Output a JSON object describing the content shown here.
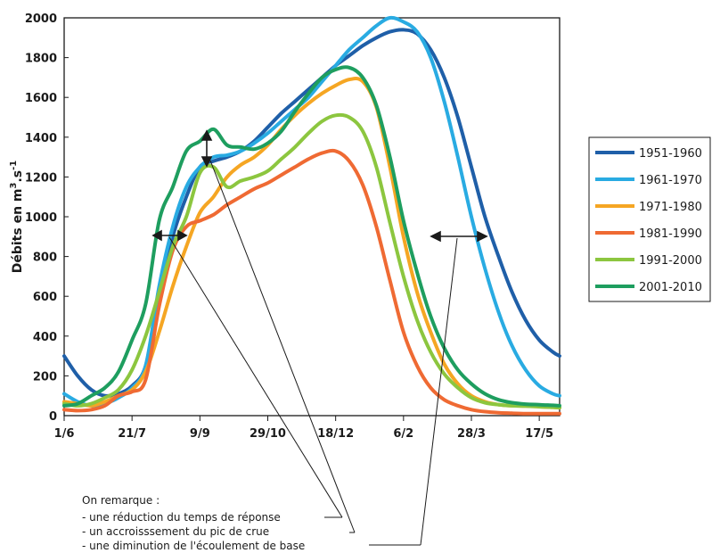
{
  "chart_data": {
    "type": "line",
    "ylabel": "Débits en m³.s⁻¹",
    "ylabel_main": "Débits en m",
    "ylabel_sup1": "3",
    "ylabel_mid": ".s",
    "ylabel_sup2": "-1",
    "ylim": [
      0,
      2000
    ],
    "yticks": [
      0,
      200,
      400,
      600,
      800,
      1000,
      1200,
      1400,
      1600,
      1800,
      2000
    ],
    "xlim": [
      0,
      365
    ],
    "xtick_labels": [
      "1/6",
      "21/7",
      "9/9",
      "29/10",
      "18/12",
      "6/2",
      "28/3",
      "17/5"
    ],
    "xtick_days": [
      0,
      50,
      100,
      150,
      200,
      250,
      300,
      350
    ],
    "grid": false,
    "legend_position": "right",
    "series": [
      {
        "name": "1951-1960",
        "color": "#1f5fa8",
        "x": [
          0,
          10,
          20,
          30,
          40,
          50,
          60,
          70,
          80,
          90,
          100,
          110,
          120,
          130,
          140,
          150,
          160,
          170,
          180,
          190,
          200,
          210,
          220,
          230,
          240,
          250,
          260,
          270,
          280,
          290,
          300,
          310,
          320,
          330,
          340,
          350,
          360,
          365
        ],
        "y": [
          300,
          200,
          130,
          100,
          110,
          150,
          250,
          600,
          900,
          1100,
          1250,
          1280,
          1300,
          1330,
          1380,
          1450,
          1520,
          1580,
          1640,
          1700,
          1760,
          1810,
          1860,
          1900,
          1930,
          1940,
          1920,
          1840,
          1700,
          1500,
          1250,
          1000,
          800,
          620,
          480,
          380,
          320,
          300
        ]
      },
      {
        "name": "1961-1970",
        "color": "#29abe2",
        "x": [
          0,
          10,
          20,
          30,
          40,
          50,
          60,
          70,
          80,
          90,
          100,
          110,
          120,
          130,
          140,
          150,
          160,
          170,
          180,
          190,
          200,
          210,
          220,
          230,
          240,
          250,
          260,
          270,
          280,
          290,
          300,
          310,
          320,
          330,
          340,
          350,
          360,
          365
        ],
        "y": [
          110,
          70,
          50,
          60,
          90,
          140,
          250,
          650,
          950,
          1150,
          1250,
          1300,
          1310,
          1330,
          1370,
          1420,
          1480,
          1540,
          1600,
          1680,
          1760,
          1840,
          1900,
          1960,
          2000,
          1980,
          1930,
          1800,
          1580,
          1300,
          1000,
          740,
          520,
          350,
          230,
          150,
          110,
          100
        ]
      },
      {
        "name": "1971-1980",
        "color": "#f5a623",
        "x": [
          0,
          10,
          20,
          30,
          40,
          50,
          60,
          70,
          80,
          90,
          100,
          110,
          120,
          130,
          140,
          150,
          160,
          170,
          180,
          190,
          200,
          210,
          220,
          230,
          240,
          250,
          260,
          270,
          280,
          290,
          300,
          310,
          320,
          330,
          340,
          350,
          360,
          365
        ],
        "y": [
          70,
          60,
          50,
          70,
          100,
          130,
          220,
          420,
          650,
          850,
          1020,
          1100,
          1200,
          1260,
          1300,
          1360,
          1440,
          1510,
          1570,
          1620,
          1660,
          1690,
          1680,
          1550,
          1250,
          900,
          620,
          420,
          260,
          160,
          100,
          70,
          55,
          50,
          48,
          45,
          42,
          40
        ]
      },
      {
        "name": "1981-1990",
        "color": "#ef6a33",
        "x": [
          0,
          10,
          20,
          30,
          40,
          50,
          60,
          70,
          80,
          90,
          100,
          110,
          120,
          130,
          140,
          150,
          160,
          170,
          180,
          190,
          200,
          210,
          220,
          230,
          240,
          250,
          260,
          270,
          280,
          290,
          300,
          310,
          320,
          330,
          340,
          350,
          360,
          365
        ],
        "y": [
          30,
          25,
          30,
          50,
          100,
          120,
          180,
          550,
          830,
          950,
          980,
          1010,
          1060,
          1100,
          1140,
          1170,
          1210,
          1250,
          1290,
          1320,
          1330,
          1280,
          1160,
          950,
          680,
          420,
          250,
          140,
          80,
          50,
          30,
          20,
          15,
          12,
          10,
          10,
          10,
          10
        ]
      },
      {
        "name": "1991-2000",
        "color": "#8cc63f",
        "x": [
          0,
          10,
          20,
          30,
          40,
          50,
          60,
          70,
          80,
          90,
          100,
          110,
          120,
          130,
          140,
          150,
          160,
          170,
          180,
          190,
          200,
          210,
          220,
          230,
          240,
          250,
          260,
          270,
          280,
          290,
          300,
          310,
          320,
          330,
          340,
          350,
          360,
          365
        ],
        "y": [
          60,
          50,
          60,
          90,
          130,
          230,
          400,
          620,
          850,
          1000,
          1220,
          1250,
          1150,
          1180,
          1200,
          1230,
          1290,
          1350,
          1420,
          1480,
          1510,
          1500,
          1430,
          1250,
          970,
          700,
          480,
          320,
          210,
          140,
          90,
          65,
          55,
          50,
          48,
          45,
          42,
          40
        ]
      },
      {
        "name": "2001-2010",
        "color": "#1e9e5f",
        "x": [
          0,
          10,
          20,
          30,
          40,
          50,
          60,
          70,
          80,
          90,
          100,
          110,
          120,
          130,
          140,
          150,
          160,
          170,
          180,
          190,
          200,
          210,
          220,
          230,
          240,
          250,
          260,
          270,
          280,
          290,
          300,
          310,
          320,
          330,
          340,
          350,
          360,
          365
        ],
        "y": [
          50,
          60,
          100,
          140,
          220,
          380,
          560,
          980,
          1150,
          1330,
          1380,
          1440,
          1360,
          1350,
          1340,
          1370,
          1430,
          1530,
          1620,
          1700,
          1740,
          1750,
          1700,
          1560,
          1300,
          980,
          720,
          500,
          340,
          230,
          160,
          110,
          80,
          65,
          58,
          55,
          52,
          50
        ]
      }
    ],
    "annotations": {
      "heading": "On remarque :",
      "items": [
        "- une réduction du temps de réponse",
        "- un accroisssement du pic de crue",
        "- une diminution de l'écoulement de base"
      ]
    }
  }
}
